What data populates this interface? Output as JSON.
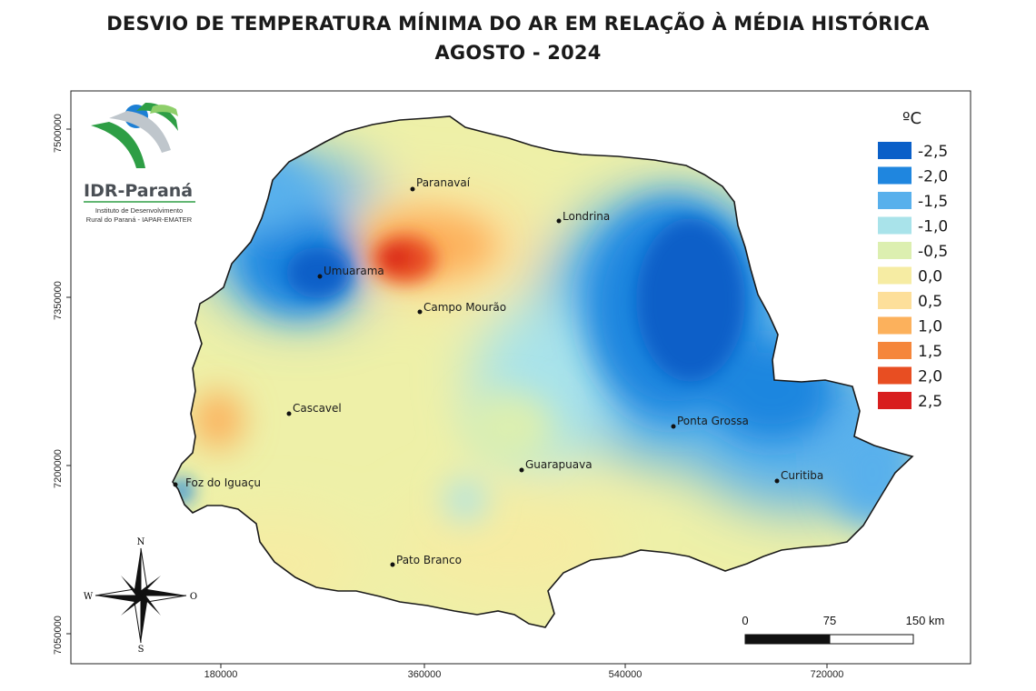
{
  "title": {
    "line1": "DESVIO DE TEMPERATURA MÍNIMA DO AR EM RELAÇÃO À MÉDIA HISTÓRICA",
    "line2": "AGOSTO - 2024"
  },
  "logo": {
    "name": "IDR-Paraná",
    "subtitle_line1": "Instituto de Desenvolvimento",
    "subtitle_line2": "Rural do Paraná - IAPAR-EMATER"
  },
  "axes": {
    "y_ticks": [
      "7500000",
      "7350000",
      "7200000",
      "7050000"
    ],
    "x_ticks": [
      "180000",
      "360000",
      "540000",
      "720000"
    ]
  },
  "legend": {
    "unit": "ºC",
    "items": [
      {
        "label": "-2,5",
        "color": "#0a5fc8"
      },
      {
        "label": "-2,0",
        "color": "#1f86df"
      },
      {
        "label": "-1,5",
        "color": "#58b0ec"
      },
      {
        "label": "-1,0",
        "color": "#a9e3ea"
      },
      {
        "label": "-0,5",
        "color": "#dcefb0"
      },
      {
        "label": "0,0",
        "color": "#f6eca3"
      },
      {
        "label": "0,5",
        "color": "#fddf9a"
      },
      {
        "label": "1,0",
        "color": "#fcb15c"
      },
      {
        "label": "1,5",
        "color": "#f5863b"
      },
      {
        "label": "2,0",
        "color": "#e84e22"
      },
      {
        "label": "2,5",
        "color": "#d81e1e"
      }
    ]
  },
  "cities": [
    {
      "name": "Paranavaí"
    },
    {
      "name": "Londrina"
    },
    {
      "name": "Umuarama"
    },
    {
      "name": "Campo Mourão"
    },
    {
      "name": "Cascavel"
    },
    {
      "name": "Ponta Grossa"
    },
    {
      "name": "Guarapuava"
    },
    {
      "name": "Foz do Iguaçu"
    },
    {
      "name": "Curitiba"
    },
    {
      "name": "Pato Branco"
    }
  ],
  "compass": {
    "north": "N",
    "south": "S",
    "east": "O",
    "west": "W"
  },
  "scalebar": {
    "labels": [
      "0",
      "75",
      "150 km"
    ]
  }
}
